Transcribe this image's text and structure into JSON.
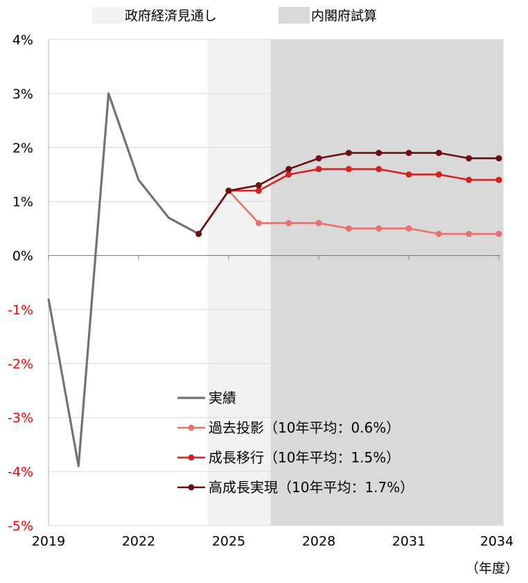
{
  "chart_data": {
    "type": "line",
    "xlabel": "",
    "ylabel": "",
    "x_unit_label": "（年度）",
    "xlim": [
      2019,
      2034
    ],
    "ylim": [
      -5,
      4
    ],
    "y_tick_values": [
      4,
      3,
      2,
      1,
      0,
      -1,
      -2,
      -3,
      -4,
      -5
    ],
    "y_tick_labels": [
      "4%",
      "3%",
      "2%",
      "1%",
      "0%",
      "-1%",
      "-2%",
      "-3%",
      "-4%",
      "-5%"
    ],
    "x_tick_values": [
      2019,
      2022,
      2025,
      2028,
      2031,
      2034
    ],
    "x_tick_labels": [
      "2019",
      "2022",
      "2025",
      "2028",
      "2031",
      "2034"
    ],
    "grid": true,
    "negative_label_color": "#ff0000",
    "shaded_regions": [
      {
        "label": "政府経済見通し",
        "from": 2024.3,
        "to": 2026.4,
        "color": "#f2f2f2"
      },
      {
        "label": "内閣府試算",
        "from": 2026.4,
        "to": 2034.15,
        "color": "#d9d9d9"
      }
    ],
    "legend_position": "lower-center",
    "series": [
      {
        "name": "実績",
        "color": "#767171",
        "markers": false,
        "x": [
          2019,
          2020,
          2021,
          2022,
          2023,
          2024
        ],
        "values": [
          -0.8,
          -3.9,
          3.0,
          1.4,
          0.7,
          0.4
        ]
      },
      {
        "name": "過去投影（10年平均：0.6%）",
        "color": "#e8706d",
        "markers": true,
        "x": [
          2024,
          2025,
          2026,
          2027,
          2028,
          2029,
          2030,
          2031,
          2032,
          2033,
          2034
        ],
        "values": [
          0.4,
          1.2,
          0.6,
          0.6,
          0.6,
          0.5,
          0.5,
          0.5,
          0.4,
          0.4,
          0.4
        ]
      },
      {
        "name": "成長移行（10年平均：1.5%）",
        "color": "#d42222",
        "markers": true,
        "x": [
          2024,
          2025,
          2026,
          2027,
          2028,
          2029,
          2030,
          2031,
          2032,
          2033,
          2034
        ],
        "values": [
          0.4,
          1.2,
          1.2,
          1.5,
          1.6,
          1.6,
          1.6,
          1.5,
          1.5,
          1.4,
          1.4
        ]
      },
      {
        "name": "高成長実現（10年平均：1.7%）",
        "color": "#6b0f0f",
        "markers": true,
        "x": [
          2024,
          2025,
          2026,
          2027,
          2028,
          2029,
          2030,
          2031,
          2032,
          2033,
          2034
        ],
        "values": [
          0.4,
          1.2,
          1.3,
          1.6,
          1.8,
          1.9,
          1.9,
          1.9,
          1.9,
          1.8,
          1.8
        ]
      }
    ]
  }
}
